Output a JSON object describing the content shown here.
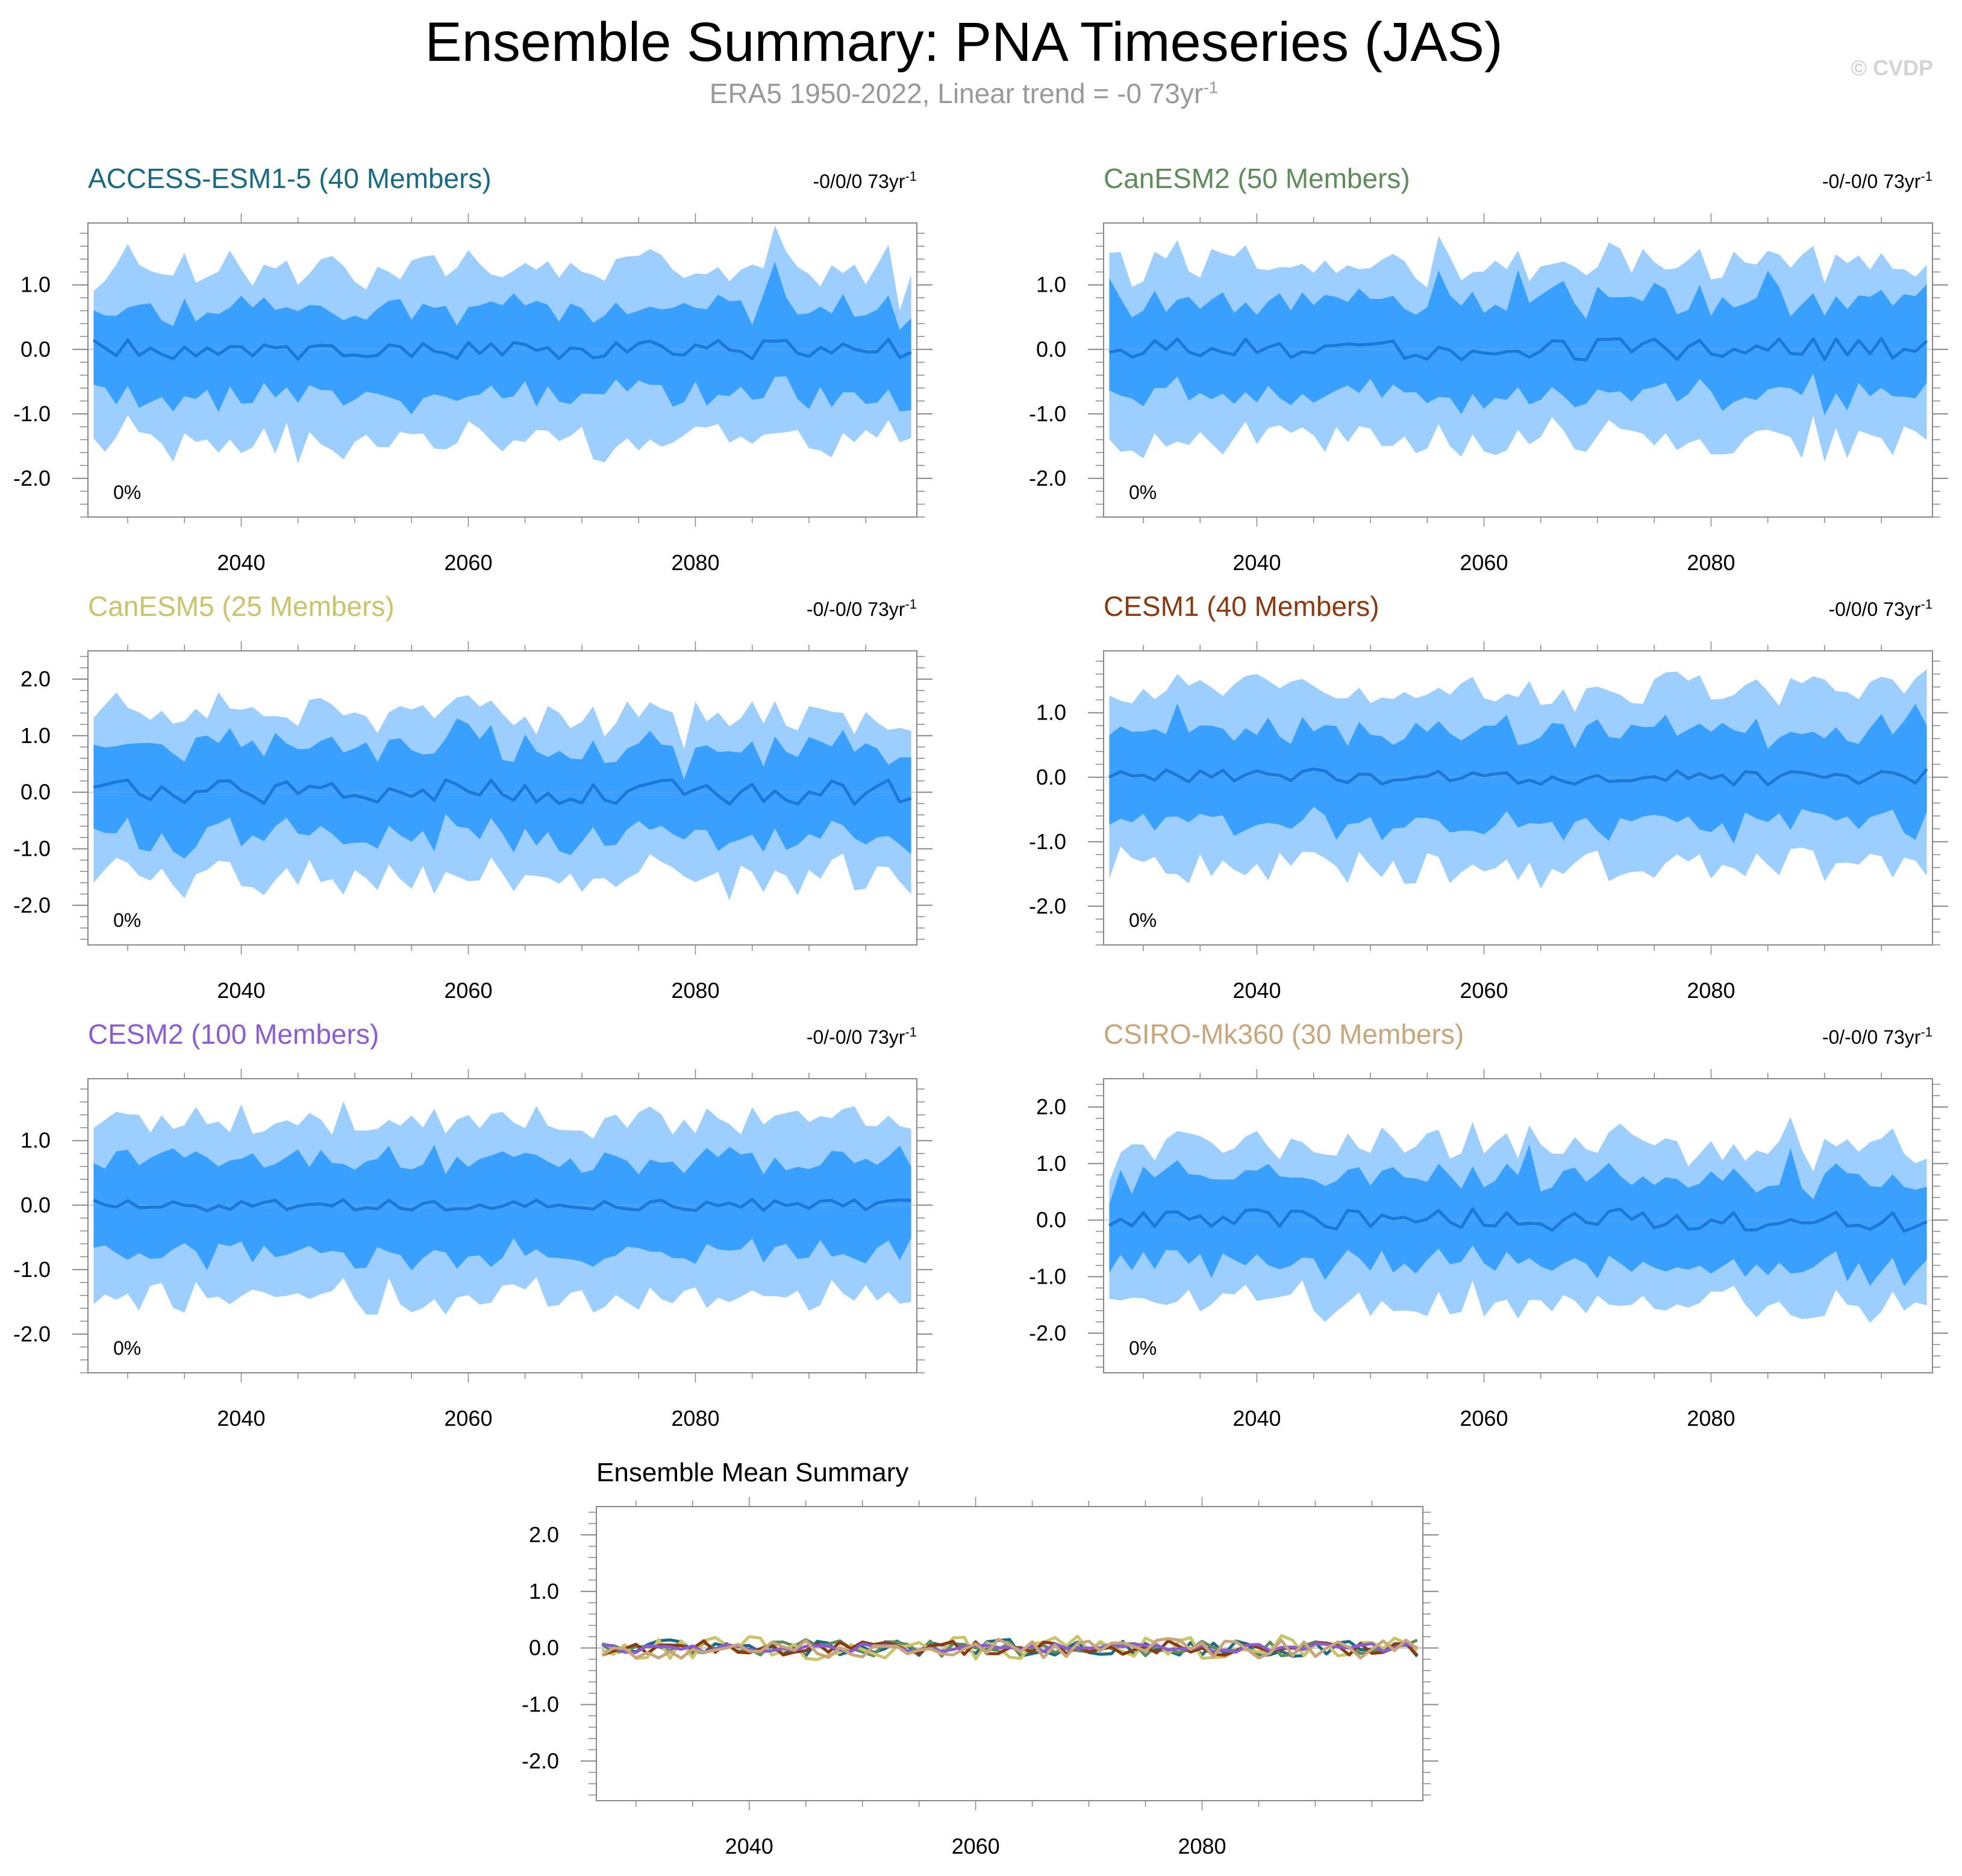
{
  "title": "Ensemble Summary: PNA Timeseries (JAS)",
  "subtitle_main": "ERA5 1950-2022, Linear trend = -0 73yr",
  "subtitle_exp": "-1",
  "credit": "© CVDP",
  "colors": {
    "outer_band": "#9ccfff",
    "inner_band": "#3aa0ff",
    "median_line": "#1c78d6",
    "axis": "#888888",
    "zero_line": "#bbbbbb"
  },
  "chart_data": [
    {
      "type": "area",
      "title": "ACCESS-ESM1-5 (40 Members)",
      "title_color": "#176b84",
      "trend_text": "-0/0/0 73yr",
      "trend_exp": "-1",
      "percent_label": "0%",
      "xlabel": "",
      "ylabel": "",
      "x_ticks": [
        2040,
        2060,
        2080
      ],
      "y_ticks": [
        1.0,
        0.0,
        -1.0,
        -2.0
      ],
      "y_tick_labels": [
        "1.0",
        "0.0",
        "-1.0",
        "-2.0"
      ],
      "xlim": [
        2026.5,
        2099.5
      ],
      "ylim": [
        -2.6,
        1.96
      ],
      "x_range": [
        2027,
        2099
      ],
      "seed": 11,
      "median_amp": 0.16,
      "inner": [
        0.65,
        0.72
      ],
      "outer": [
        1.3,
        1.45
      ],
      "spikes": [
        [
          0,
          -0.3,
          -0.55
        ],
        [
          60,
          0.45,
          0.3
        ],
        [
          64,
          -0.1,
          -0.35
        ],
        [
          71,
          -0.3,
          -0.35
        ]
      ]
    },
    {
      "type": "area",
      "title": "CanESM2 (50 Members)",
      "title_color": "#5e8c5a",
      "trend_text": "-0/-0/0 73yr",
      "trend_exp": "-1",
      "percent_label": "0%",
      "xlabel": "",
      "ylabel": "",
      "x_ticks": [
        2040,
        2060,
        2080
      ],
      "y_ticks": [
        1.0,
        0.0,
        -1.0,
        -2.0
      ],
      "y_tick_labels": [
        "1.0",
        "0.0",
        "-1.0",
        "-2.0"
      ],
      "xlim": [
        2026.5,
        2099.5
      ],
      "ylim": [
        -2.6,
        1.96
      ],
      "x_range": [
        2027,
        2099
      ],
      "seed": 23,
      "median_amp": 0.17,
      "inner": [
        0.75,
        0.7
      ],
      "outer": [
        1.35,
        1.45
      ],
      "spikes": [
        [
          0,
          0.35,
          0.3
        ],
        [
          29,
          0.4,
          0.35
        ],
        [
          36,
          0.35,
          0.3
        ],
        [
          58,
          0.3,
          0.3
        ]
      ]
    },
    {
      "type": "area",
      "title": "CanESM5 (25 Members)",
      "title_color": "#c9c36a",
      "trend_text": "-0/-0/0 73yr",
      "trend_exp": "-1",
      "percent_label": "0%",
      "xlabel": "",
      "ylabel": "",
      "x_ticks": [
        2040,
        2060,
        2080
      ],
      "y_ticks": [
        2.0,
        1.0,
        0.0,
        -1.0,
        -2.0
      ],
      "y_tick_labels": [
        "2.0",
        "1.0",
        "0.0",
        "-1.0",
        "-2.0"
      ],
      "xlim": [
        2026.5,
        2099.5
      ],
      "ylim": [
        -2.7,
        2.5
      ],
      "x_range": [
        2027,
        2099
      ],
      "seed": 37,
      "median_amp": 0.22,
      "inner": [
        0.8,
        0.8
      ],
      "outer": [
        1.4,
        1.5
      ],
      "spikes": [
        [
          33,
          0.55,
          0.4
        ],
        [
          32,
          0.35,
          0.3
        ],
        [
          52,
          -0.4,
          -0.35
        ],
        [
          70,
          -0.35,
          -0.3
        ],
        [
          64,
          0.3,
          0.4
        ]
      ]
    },
    {
      "type": "area",
      "title": "CESM1 (40 Members)",
      "title_color": "#8b3a0f",
      "trend_text": "-0/0/0 73yr",
      "trend_exp": "-1",
      "percent_label": "0%",
      "xlabel": "",
      "ylabel": "",
      "x_ticks": [
        2040,
        2060,
        2080
      ],
      "y_ticks": [
        1.0,
        0.0,
        -1.0,
        -2.0
      ],
      "y_tick_labels": [
        "1.0",
        "0.0",
        "-1.0",
        "-2.0"
      ],
      "xlim": [
        2026.5,
        2099.5
      ],
      "ylim": [
        -2.6,
        1.96
      ],
      "x_range": [
        2027,
        2099
      ],
      "seed": 41,
      "median_amp": 0.13,
      "inner": [
        0.72,
        0.75
      ],
      "outer": [
        1.35,
        1.45
      ],
      "spikes": [
        [
          49,
          0.25,
          0.35
        ],
        [
          71,
          0.35,
          0.2
        ],
        [
          6,
          0.3,
          0.2
        ]
      ]
    },
    {
      "type": "area",
      "title": "CESM2 (100 Members)",
      "title_color": "#8a5cd6",
      "trend_text": "-0/-0/0 73yr",
      "trend_exp": "-1",
      "percent_label": "0%",
      "xlabel": "",
      "ylabel": "",
      "x_ticks": [
        2040,
        2060,
        2080
      ],
      "y_ticks": [
        1.0,
        0.0,
        -1.0,
        -2.0
      ],
      "y_tick_labels": [
        "1.0",
        "0.0",
        "-1.0",
        "-2.0"
      ],
      "xlim": [
        2026.5,
        2099.5
      ],
      "ylim": [
        -2.6,
        1.96
      ],
      "x_range": [
        2027,
        2099
      ],
      "seed": 53,
      "median_amp": 0.09,
      "inner": [
        0.72,
        0.75
      ],
      "outer": [
        1.35,
        1.45
      ],
      "spikes": [
        [
          17,
          0.2,
          0.1
        ],
        [
          72,
          -0.15,
          -0.2
        ]
      ]
    },
    {
      "type": "area",
      "title": "CSIRO-Mk360 (30 Members)",
      "title_color": "#c9a57a",
      "trend_text": "-0/-0/0 73yr",
      "trend_exp": "-1",
      "percent_label": "0%",
      "xlabel": "",
      "ylabel": "",
      "x_ticks": [
        2040,
        2060,
        2080
      ],
      "y_ticks": [
        2.0,
        1.0,
        0.0,
        -1.0,
        -2.0
      ],
      "y_tick_labels": [
        "2.0",
        "1.0",
        "0.0",
        "-1.0",
        "-2.0"
      ],
      "xlim": [
        2026.5,
        2099.5
      ],
      "ylim": [
        -2.7,
        2.5
      ],
      "x_range": [
        2027,
        2099
      ],
      "seed": 67,
      "median_amp": 0.2,
      "inner": [
        0.75,
        0.8
      ],
      "outer": [
        1.35,
        1.5
      ],
      "spikes": [
        [
          37,
          0.6,
          0.5
        ],
        [
          60,
          0.45,
          0.35
        ],
        [
          0,
          -0.5,
          -0.6
        ],
        [
          62,
          -0.5,
          -0.45
        ]
      ]
    },
    {
      "type": "line",
      "title": "Ensemble Mean Summary",
      "title_color": "#000000",
      "percent_label": "",
      "xlabel": "",
      "ylabel": "",
      "x_ticks": [
        2040,
        2060,
        2080
      ],
      "y_ticks": [
        2.0,
        1.0,
        0.0,
        -1.0,
        -2.0
      ],
      "y_tick_labels": [
        "2.0",
        "1.0",
        "0.0",
        "-1.0",
        "-2.0"
      ],
      "xlim": [
        2026.5,
        2099.5
      ],
      "ylim": [
        -2.7,
        2.5
      ],
      "x_range": [
        2027,
        2099
      ],
      "seed": 79,
      "series": [
        {
          "name": "ACCESS-ESM1-5",
          "color": "#176b84",
          "amp": 0.15
        },
        {
          "name": "CanESM2",
          "color": "#5e8c5a",
          "amp": 0.15
        },
        {
          "name": "CanESM5",
          "color": "#c9c36a",
          "amp": 0.22
        },
        {
          "name": "CESM1",
          "color": "#8b3a0f",
          "amp": 0.13
        },
        {
          "name": "CESM2",
          "color": "#8a5cd6",
          "amp": 0.08
        },
        {
          "name": "CSIRO-Mk360",
          "color": "#c9a57a",
          "amp": 0.18
        }
      ]
    }
  ]
}
